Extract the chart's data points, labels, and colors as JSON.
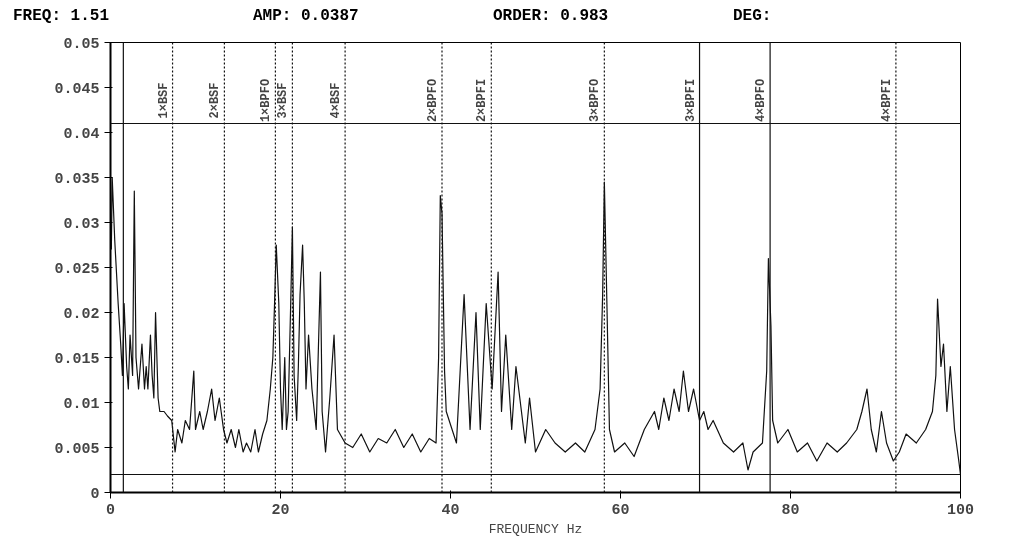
{
  "chart_data": {
    "type": "line",
    "xlabel": "FREQUENCY Hz",
    "annotations": [
      "FREQ: 1.51",
      "AMP: 0.0387",
      "ORDER: 0.983",
      "DEG:"
    ],
    "xlim": [
      0,
      100
    ],
    "ylim": [
      0,
      0.05
    ],
    "xticks": [
      0,
      20,
      40,
      60,
      80,
      100
    ],
    "yticks": [
      0,
      0.005,
      0.01,
      0.015,
      0.02,
      0.025,
      0.03,
      0.035,
      0.04,
      0.045,
      0.05
    ],
    "grid": false,
    "marker": "none",
    "line_style": "solid",
    "series": [
      {
        "color": "#111111",
        "x": [
          0.1,
          0.2,
          0.5,
          0.7,
          0.9,
          1.2,
          1.4,
          1.6,
          1.9,
          2.1,
          2.3,
          2.6,
          2.8,
          3.0,
          3.3,
          3.5,
          3.7,
          4.0,
          4.2,
          4.4,
          4.7,
          4.9,
          5.1,
          5.3,
          5.6,
          5.8,
          6.3,
          6.7,
          7.2,
          7.6,
          7.9,
          8.4,
          8.8,
          9.3,
          9.8,
          10.0,
          10.5,
          10.9,
          11.4,
          11.9,
          12.3,
          12.8,
          13.3,
          13.7,
          14.2,
          14.7,
          15.1,
          15.6,
          16.0,
          16.5,
          17.0,
          17.4,
          17.9,
          18.4,
          18.8,
          19.1,
          19.3,
          19.5,
          19.8,
          20.0,
          20.2,
          20.5,
          20.7,
          20.9,
          21.2,
          21.4,
          21.6,
          21.9,
          22.1,
          22.3,
          22.6,
          22.8,
          23.0,
          23.3,
          23.7,
          24.2,
          24.7,
          24.9,
          25.3,
          25.8,
          26.3,
          26.7,
          27.6,
          28.5,
          29.5,
          30.5,
          31.5,
          32.5,
          33.5,
          34.5,
          35.5,
          36.5,
          37.5,
          38.3,
          38.6,
          38.8,
          39.0,
          39.3,
          39.5,
          40.7,
          41.6,
          42.3,
          43.0,
          43.5,
          44.2,
          44.9,
          45.6,
          46.0,
          46.5,
          47.2,
          47.7,
          48.8,
          49.3,
          50.0,
          51.2,
          52.3,
          53.5,
          54.7,
          55.8,
          57.0,
          57.6,
          57.9,
          58.1,
          58.4,
          58.7,
          59.3,
          60.5,
          61.6,
          62.8,
          64.0,
          64.5,
          65.1,
          65.7,
          66.3,
          66.9,
          67.4,
          68.0,
          68.6,
          69.3,
          69.8,
          70.3,
          70.9,
          72.1,
          73.3,
          74.4,
          75.0,
          75.6,
          76.7,
          77.2,
          77.4,
          77.7,
          77.9,
          78.5,
          79.7,
          80.8,
          82.0,
          83.1,
          84.3,
          85.5,
          86.6,
          87.8,
          88.4,
          89.0,
          89.5,
          90.1,
          90.7,
          91.3,
          92.1,
          92.8,
          93.6,
          94.8,
          95.9,
          96.7,
          97.1,
          97.3,
          97.7,
          98.0,
          98.4,
          98.8,
          99.3,
          99.8,
          100
        ],
        "values": [
          0.027,
          0.035,
          0.028,
          0.0245,
          0.021,
          0.0165,
          0.013,
          0.021,
          0.014,
          0.0115,
          0.0175,
          0.013,
          0.0335,
          0.015,
          0.0115,
          0.014,
          0.0165,
          0.0115,
          0.014,
          0.0115,
          0.0175,
          0.013,
          0.0105,
          0.02,
          0.0105,
          0.009,
          0.009,
          0.0085,
          0.008,
          0.0045,
          0.007,
          0.0055,
          0.008,
          0.007,
          0.0135,
          0.007,
          0.009,
          0.007,
          0.009,
          0.0115,
          0.008,
          0.0105,
          0.007,
          0.0055,
          0.007,
          0.005,
          0.007,
          0.0045,
          0.0055,
          0.0045,
          0.007,
          0.0045,
          0.0065,
          0.008,
          0.0115,
          0.015,
          0.021,
          0.0275,
          0.021,
          0.0115,
          0.007,
          0.015,
          0.007,
          0.009,
          0.021,
          0.0295,
          0.013,
          0.008,
          0.014,
          0.022,
          0.0275,
          0.021,
          0.0115,
          0.0175,
          0.0115,
          0.007,
          0.0245,
          0.009,
          0.0045,
          0.0105,
          0.0175,
          0.007,
          0.0055,
          0.005,
          0.0065,
          0.0045,
          0.006,
          0.0055,
          0.007,
          0.005,
          0.0065,
          0.0045,
          0.006,
          0.0055,
          0.015,
          0.033,
          0.031,
          0.0135,
          0.009,
          0.0055,
          0.022,
          0.007,
          0.02,
          0.007,
          0.021,
          0.0115,
          0.0245,
          0.009,
          0.0175,
          0.007,
          0.014,
          0.0055,
          0.0105,
          0.0045,
          0.007,
          0.0055,
          0.0045,
          0.0055,
          0.0045,
          0.007,
          0.0115,
          0.022,
          0.0345,
          0.021,
          0.007,
          0.0045,
          0.0055,
          0.004,
          0.007,
          0.009,
          0.007,
          0.0105,
          0.008,
          0.0115,
          0.009,
          0.0135,
          0.009,
          0.0115,
          0.008,
          0.009,
          0.007,
          0.008,
          0.0055,
          0.0045,
          0.0055,
          0.0025,
          0.0045,
          0.0055,
          0.0135,
          0.026,
          0.0185,
          0.008,
          0.0055,
          0.007,
          0.0045,
          0.0055,
          0.0035,
          0.0055,
          0.0045,
          0.0055,
          0.007,
          0.009,
          0.0115,
          0.007,
          0.0045,
          0.009,
          0.0055,
          0.0035,
          0.0045,
          0.0065,
          0.0055,
          0.007,
          0.009,
          0.013,
          0.0215,
          0.014,
          0.0165,
          0.009,
          0.014,
          0.007,
          0.0035,
          0.002
        ]
      }
    ],
    "ref_lines": [
      {
        "axis": "x",
        "value": 1.51,
        "line_style": "solid"
      },
      {
        "axis": "x",
        "value": 7.3,
        "label": "1×BSF",
        "line_style": "dotted"
      },
      {
        "axis": "x",
        "value": 13.4,
        "label": "2×BSF",
        "line_style": "dotted"
      },
      {
        "axis": "x",
        "value": 19.4,
        "label": "1×BPFO",
        "line_style": "dotted"
      },
      {
        "axis": "x",
        "value": 21.4,
        "label": "3×BSF",
        "line_style": "dotted"
      },
      {
        "axis": "x",
        "value": 27.6,
        "label": "4×BSF",
        "line_style": "dotted"
      },
      {
        "axis": "x",
        "value": 39.0,
        "label": "2×BPFO",
        "line_style": "dotted"
      },
      {
        "axis": "x",
        "value": 44.8,
        "label": "2×BPFI",
        "line_style": "dotted"
      },
      {
        "axis": "x",
        "value": 58.1,
        "label": "3×BPFO",
        "line_style": "dotted"
      },
      {
        "axis": "x",
        "value": 69.3,
        "label": "3×BPFI",
        "line_style": "solid"
      },
      {
        "axis": "x",
        "value": 77.6,
        "label": "4×BPFO",
        "line_style": "solid"
      },
      {
        "axis": "x",
        "value": 92.4,
        "label": "4×BPFI",
        "line_style": "dotted"
      },
      {
        "axis": "y",
        "value": 0.041,
        "line_style": "solid"
      },
      {
        "axis": "y",
        "value": 0.002,
        "line_style": "solid"
      }
    ]
  }
}
